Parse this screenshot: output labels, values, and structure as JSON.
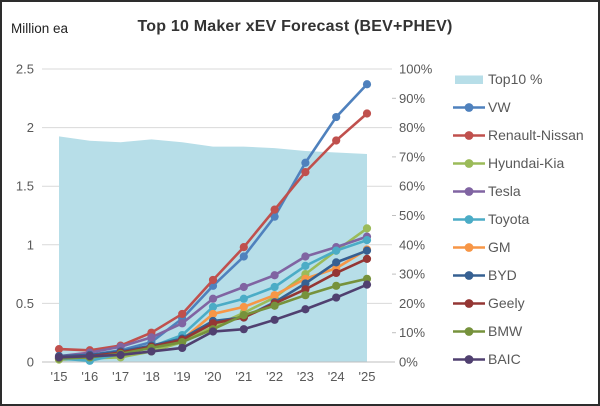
{
  "header": {
    "unit_label": "Million ea",
    "title": "Top 10 Maker xEV Forecast (BEV+PHEV)"
  },
  "colors": {
    "gridline": "#D9D9D9",
    "axis_line": "#BFBFBF",
    "axis_text": "#595959",
    "title_text": "#333333",
    "border": "#2d2d2d"
  },
  "chart_data": {
    "type": "line",
    "title": "Top 10 Maker xEV Forecast (BEV+PHEV)",
    "left_axis_unit": "Million ea",
    "categories": [
      "'15",
      "'16",
      "'17",
      "'18",
      "'19",
      "'20",
      "'21",
      "'22",
      "'23",
      "'24",
      "'25"
    ],
    "left_axis": {
      "min": 0,
      "max": 2.5,
      "tick_step": 0.5
    },
    "right_axis": {
      "min": 0,
      "max": 100,
      "tick_step": 10,
      "suffix": "%"
    },
    "grid": "horizontal",
    "legend_position": "right",
    "area_series": {
      "name": "Top10 %",
      "axis": "right",
      "color": "#B7DEE8",
      "values": [
        77,
        75.5,
        75,
        76,
        75,
        73.5,
        73.5,
        73,
        72,
        71.5,
        71
      ]
    },
    "series": [
      {
        "name": "VW",
        "color": "#4F81BD",
        "values": [
          0.03,
          0.06,
          0.1,
          0.17,
          0.37,
          0.65,
          0.9,
          1.24,
          1.7,
          2.09,
          2.37
        ]
      },
      {
        "name": "Renault-Nissan",
        "color": "#C0504D",
        "values": [
          0.11,
          0.1,
          0.14,
          0.25,
          0.41,
          0.7,
          0.98,
          1.3,
          1.62,
          1.89,
          2.12
        ]
      },
      {
        "name": "Hyundai-Kia",
        "color": "#9BBB59",
        "values": [
          0.02,
          0.03,
          0.04,
          0.09,
          0.17,
          0.3,
          0.42,
          0.55,
          0.75,
          0.95,
          1.14
        ]
      },
      {
        "name": "Tesla",
        "color": "#8064A2",
        "values": [
          0.05,
          0.08,
          0.13,
          0.21,
          0.33,
          0.54,
          0.64,
          0.74,
          0.9,
          0.98,
          1.07
        ]
      },
      {
        "name": "Toyota",
        "color": "#4BACC6",
        "values": [
          0.03,
          0.01,
          0.07,
          0.13,
          0.23,
          0.47,
          0.54,
          0.64,
          0.82,
          0.95,
          1.04
        ]
      },
      {
        "name": "GM",
        "color": "#F79646",
        "values": [
          0.03,
          0.04,
          0.08,
          0.14,
          0.19,
          0.41,
          0.47,
          0.57,
          0.71,
          0.8,
          0.96
        ]
      },
      {
        "name": "BYD",
        "color": "#366092",
        "values": [
          0.05,
          0.06,
          0.09,
          0.14,
          0.2,
          0.35,
          0.38,
          0.51,
          0.67,
          0.85,
          0.95
        ]
      },
      {
        "name": "Geely",
        "color": "#943634",
        "values": [
          0.04,
          0.05,
          0.08,
          0.13,
          0.19,
          0.33,
          0.38,
          0.5,
          0.62,
          0.76,
          0.88
        ]
      },
      {
        "name": "BMW",
        "color": "#76923C",
        "values": [
          0.03,
          0.04,
          0.07,
          0.12,
          0.17,
          0.28,
          0.4,
          0.48,
          0.57,
          0.65,
          0.71
        ]
      },
      {
        "name": "BAIC",
        "color": "#504070",
        "values": [
          0.04,
          0.05,
          0.06,
          0.09,
          0.12,
          0.26,
          0.28,
          0.36,
          0.45,
          0.55,
          0.66
        ]
      }
    ]
  }
}
